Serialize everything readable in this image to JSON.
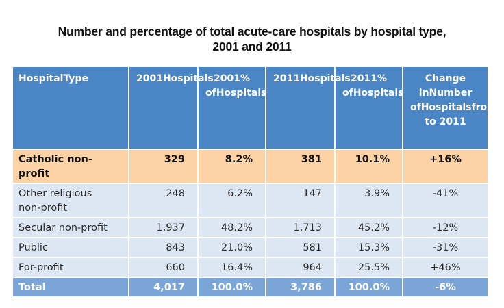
{
  "title": {
    "line1": "Number and percentage of total acute-care hospitals by hospital type,",
    "line2": "2001 and 2011"
  },
  "colors": {
    "header_bg": "#4a86c5",
    "highlight_row_bg": "#fdd3a5",
    "row_bg": "#dde6f3",
    "total_row_bg": "#7aa5d6"
  },
  "table": {
    "headers": [
      [
        "Hospital",
        "Type"
      ],
      [
        "2001",
        "Hospitals"
      ],
      [
        "2001",
        "% of",
        "Hospitals"
      ],
      [
        "2011",
        "Hospitals"
      ],
      [
        "2011",
        "% of",
        "Hospitals"
      ],
      [
        "Change in",
        "Number of",
        "Hospitals",
        "from",
        "2001 to 2011"
      ]
    ],
    "rows": [
      {
        "type": [
          "Catholic non-profit"
        ],
        "h2001": "329",
        "p2001": "8.2%",
        "h2011": "381",
        "p2011": "10.1%",
        "change": "+16%"
      },
      {
        "type": [
          "Other religious",
          "non-profit"
        ],
        "h2001": "248",
        "p2001": "6.2%",
        "h2011": "147",
        "p2011": "3.9%",
        "change": "-41%"
      },
      {
        "type": [
          "Secular non-profit"
        ],
        "h2001": "1,937",
        "p2001": "48.2%",
        "h2011": "1,713",
        "p2011": "45.2%",
        "change": "-12%"
      },
      {
        "type": [
          "Public"
        ],
        "h2001": "843",
        "p2001": "21.0%",
        "h2011": "581",
        "p2011": "15.3%",
        "change": "-31%"
      },
      {
        "type": [
          "For-profit"
        ],
        "h2001": "660",
        "p2001": "16.4%",
        "h2011": "964",
        "p2011": "25.5%",
        "change": "+46%"
      },
      {
        "type": [
          "Total"
        ],
        "h2001": "4,017",
        "p2001": "100.0%",
        "h2011": "3,786",
        "p2011": "100.0%",
        "change": "-6%"
      }
    ]
  }
}
